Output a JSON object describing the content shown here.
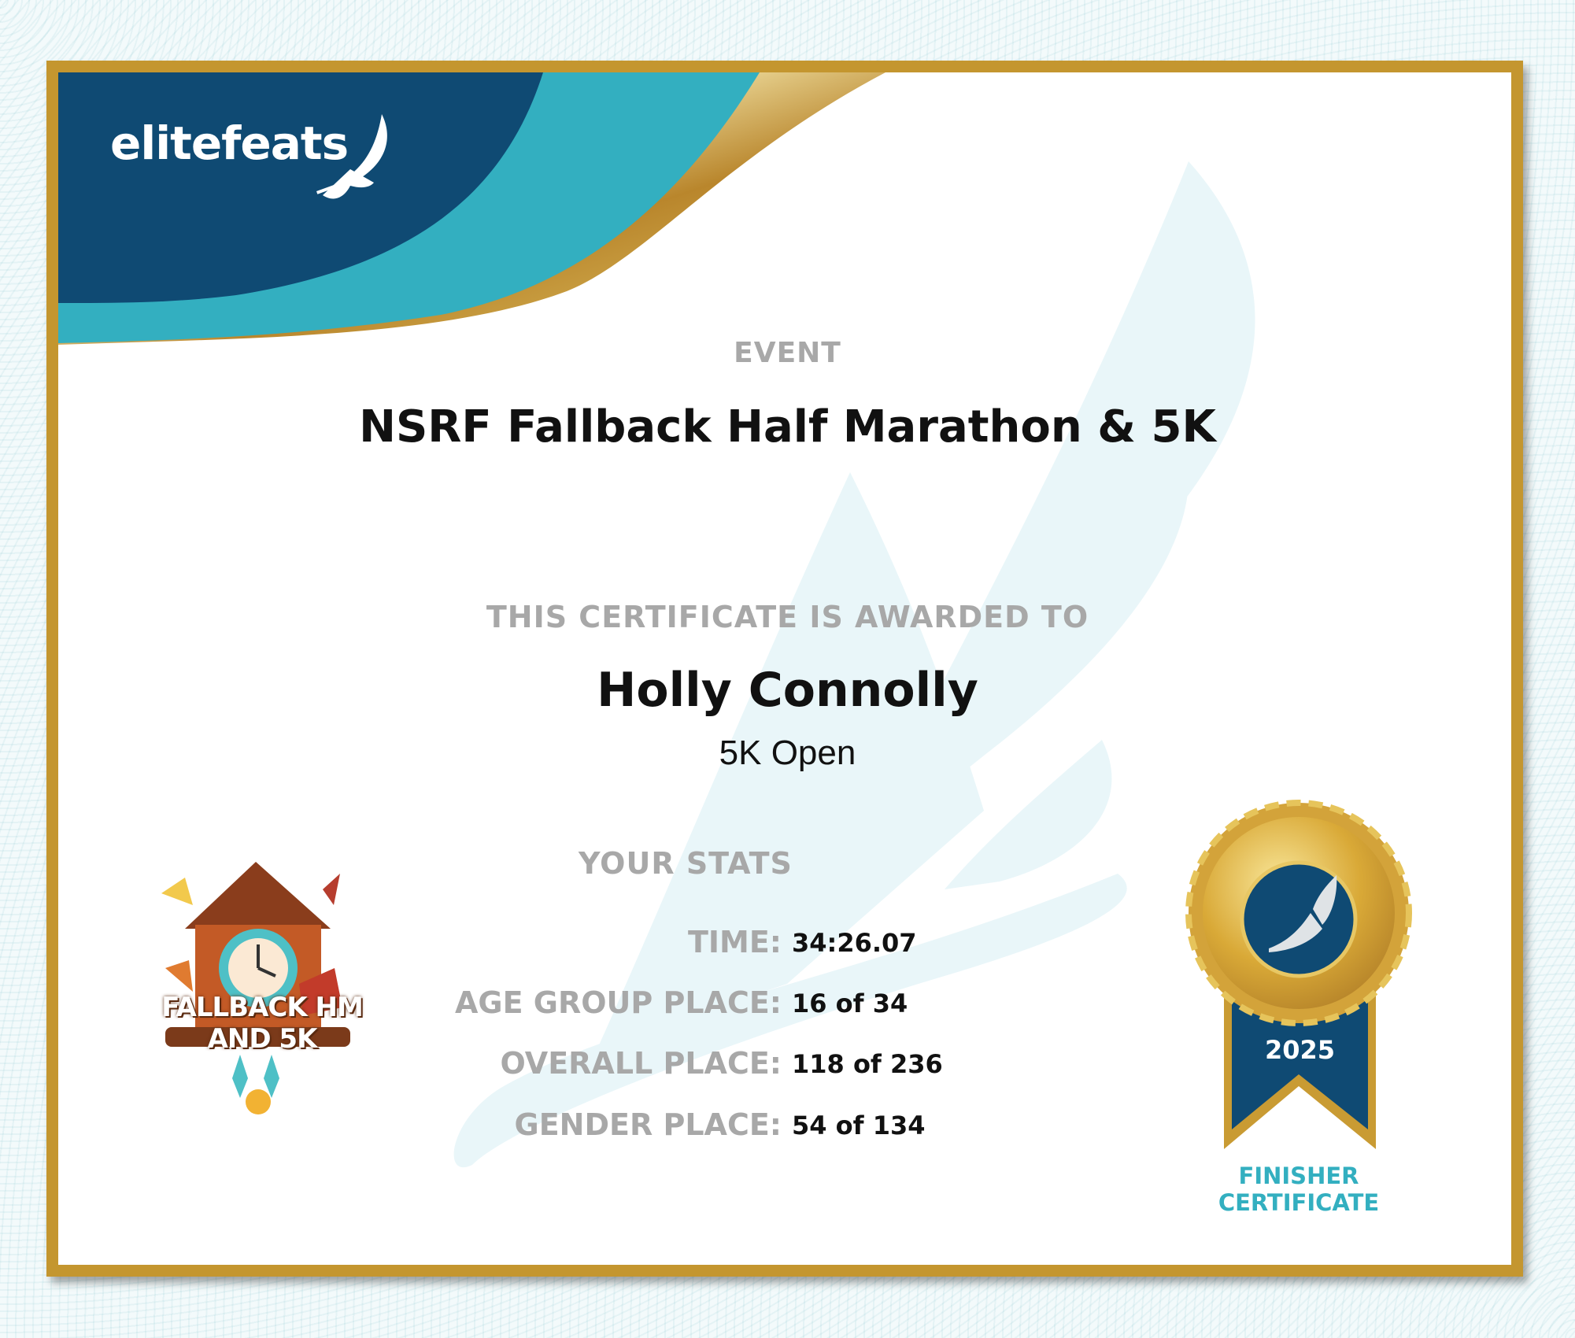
{
  "brand": {
    "name": "elitefeats",
    "logo_icon": "winged-shoe-icon"
  },
  "colors": {
    "navy": "#0f4a73",
    "teal": "#33afc0",
    "gold": "#c4962f",
    "label_gray": "#a8a8a8"
  },
  "event": {
    "label": "EVENT",
    "name": "NSRF Fallback Half Marathon & 5K"
  },
  "award": {
    "label": "THIS CERTIFICATE IS AWARDED TO",
    "recipient": "Holly Connolly",
    "division": "5K Open"
  },
  "stats": {
    "heading": "YOUR STATS",
    "rows": [
      {
        "label": "TIME:",
        "value": "34:26.07"
      },
      {
        "label": "AGE GROUP PLACE:",
        "value": "16 of 34"
      },
      {
        "label": "OVERALL PLACE:",
        "value": "118 of 236"
      },
      {
        "label": "GENDER PLACE:",
        "value": "54 of 134"
      }
    ]
  },
  "event_logo": {
    "text": "FALLBACK HM AND 5K"
  },
  "medal": {
    "year": "2025",
    "line1": "FINISHER",
    "line2": "CERTIFICATE"
  }
}
